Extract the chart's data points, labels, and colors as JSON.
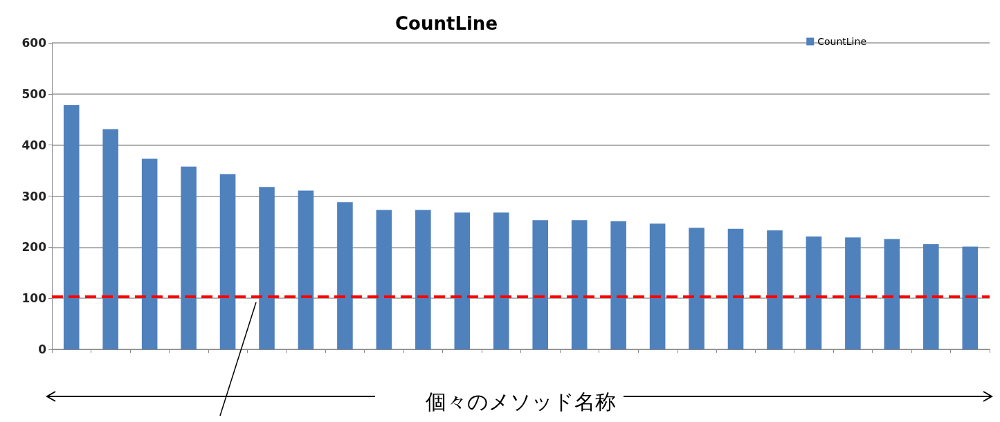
{
  "chart_data": {
    "type": "bar",
    "title": "CountLine",
    "xlabel": "個々のメソッド名称",
    "categories": [
      null,
      null,
      null,
      null,
      null,
      null,
      null,
      null,
      null,
      null,
      null,
      null,
      null,
      null,
      null,
      null,
      null,
      null,
      null,
      null,
      null,
      null,
      null,
      null
    ],
    "series": [
      {
        "name": "CountLine",
        "color": "#4f81bd",
        "values": [
          478,
          431,
          373,
          358,
          343,
          318,
          311,
          288,
          273,
          273,
          268,
          268,
          253,
          253,
          251,
          246,
          238,
          236,
          233,
          221,
          219,
          216,
          206,
          201
        ]
      }
    ],
    "ylim": [
      0,
      600
    ],
    "yticks": [
      0,
      100,
      200,
      300,
      400,
      500,
      600
    ],
    "grid": "y",
    "legend": "top right",
    "ref_lines": [
      {
        "axis": "y",
        "value": 103,
        "color": "#ff0000",
        "line_style": "dashed"
      }
    ]
  }
}
